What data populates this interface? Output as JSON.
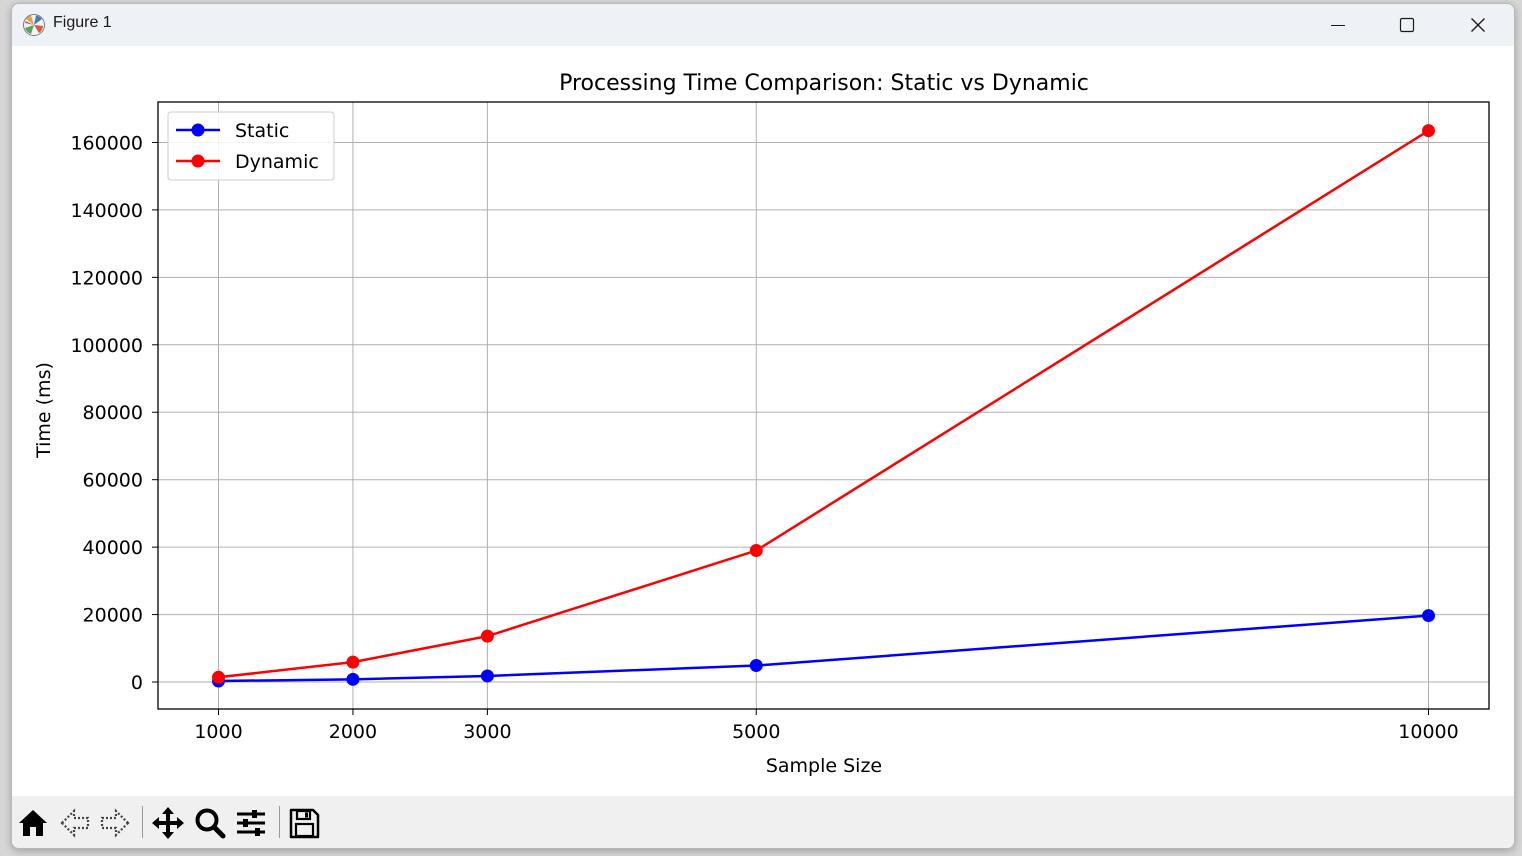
{
  "window": {
    "title": "Figure 1",
    "controls": [
      "minimize-icon",
      "maximize-icon",
      "close-icon"
    ]
  },
  "toolbar": {
    "buttons": [
      "home-icon",
      "back-arrow-icon",
      "forward-arrow-icon",
      "pan-move-icon",
      "zoom-magnifier-icon",
      "configure-subplots-icon",
      "save-floppy-icon"
    ]
  },
  "chart_data": {
    "type": "line",
    "title": "Processing Time Comparison: Static vs Dynamic",
    "xlabel": "Sample Size",
    "ylabel": "Time (ms)",
    "x": [
      1000,
      2000,
      3000,
      5000,
      10000
    ],
    "xticks": [
      "1000",
      "2000",
      "3000",
      "5000",
      "10000"
    ],
    "yticks": [
      "0",
      "20000",
      "40000",
      "60000",
      "80000",
      "100000",
      "120000",
      "140000",
      "160000"
    ],
    "xlim": [
      550,
      10450
    ],
    "ylim": [
      -8000,
      172000
    ],
    "grid": true,
    "legend_position": "upper-left",
    "series": [
      {
        "name": "Static",
        "color": "#0000ff",
        "values": [
          300,
          800,
          1800,
          4900,
          19700
        ]
      },
      {
        "name": "Dynamic",
        "color": "#ff0000",
        "values": [
          1400,
          5900,
          13600,
          39000,
          163500
        ]
      }
    ]
  }
}
